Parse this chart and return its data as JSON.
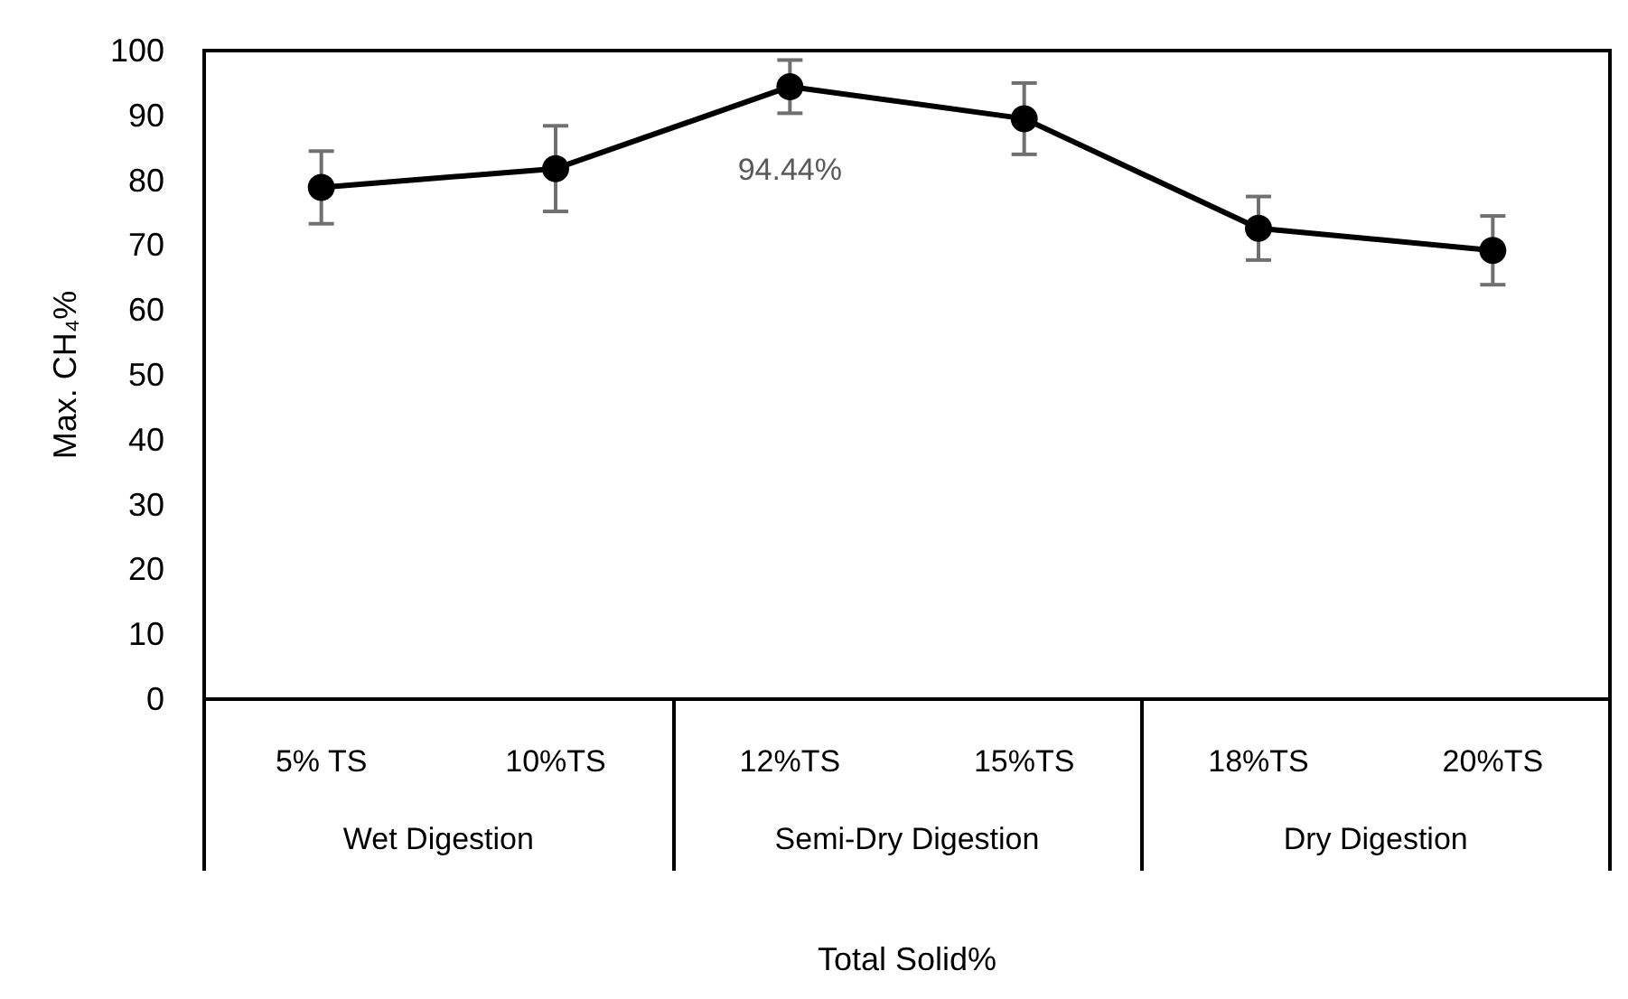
{
  "chart_data": {
    "type": "line",
    "categories": [
      "5% TS",
      "10%TS",
      "12%TS",
      "15%TS",
      "18%TS",
      "20%TS"
    ],
    "annotations": [
      "Wet Digestion",
      "Semi-Dry Digestion",
      "Dry Digestion"
    ],
    "xlabel": "Total Solid%",
    "ylabel": "Max. CH₄%",
    "series": [
      {
        "color": "#000000",
        "values": [
          78.9,
          81.8,
          94.44,
          89.5,
          72.6,
          69.2
        ],
        "errors": [
          5.6,
          6.6,
          4.1,
          5.5,
          4.9,
          5.3
        ],
        "value_labels": [
          null,
          null,
          "94.44%",
          null,
          null,
          null
        ]
      }
    ],
    "ylim": [
      0,
      100
    ],
    "yticks": [
      0,
      10,
      20,
      30,
      40,
      50,
      60,
      70,
      80,
      90,
      100
    ],
    "grid": false,
    "marker": "circle",
    "line_style": "solid"
  }
}
